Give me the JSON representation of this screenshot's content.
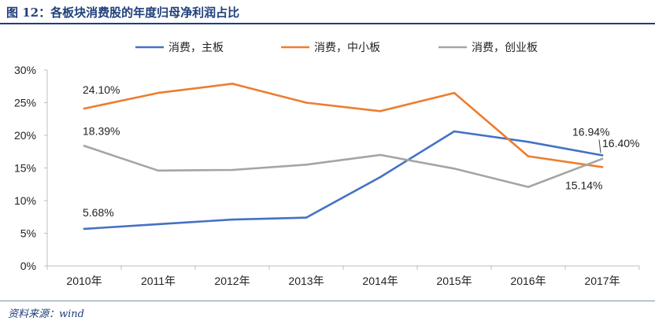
{
  "figure": {
    "title": "图 12：各板块消费股的年度归母净利润占比",
    "source": "资料来源：wind"
  },
  "chart_data": {
    "type": "line",
    "categories": [
      "2010年",
      "2011年",
      "2012年",
      "2013年",
      "2014年",
      "2015年",
      "2016年",
      "2017年"
    ],
    "series": [
      {
        "name": "消费，主板",
        "color": "#4472c4",
        "values": [
          5.68,
          6.4,
          7.1,
          7.4,
          13.6,
          20.6,
          19.0,
          16.94
        ]
      },
      {
        "name": "消费，中小板",
        "color": "#ed7d31",
        "values": [
          24.1,
          26.5,
          27.9,
          25.0,
          23.7,
          26.5,
          16.8,
          15.14
        ]
      },
      {
        "name": "消费，创业板",
        "color": "#a5a5a5",
        "values": [
          18.39,
          14.6,
          14.7,
          15.5,
          17.0,
          14.9,
          12.1,
          16.4
        ]
      }
    ],
    "ylim": [
      0,
      30
    ],
    "yticks": [
      0,
      5,
      10,
      15,
      20,
      25,
      30
    ],
    "ytick_labels": [
      "0%",
      "5%",
      "10%",
      "15%",
      "20%",
      "25%",
      "30%"
    ],
    "grid": false,
    "legend_position": "top",
    "data_labels": [
      {
        "series": 0,
        "index": 0,
        "text": "5.68%"
      },
      {
        "series": 0,
        "index": 7,
        "text": "16.94%"
      },
      {
        "series": 1,
        "index": 0,
        "text": "24.10%"
      },
      {
        "series": 1,
        "index": 7,
        "text": "15.14%"
      },
      {
        "series": 2,
        "index": 0,
        "text": "18.39%"
      },
      {
        "series": 2,
        "index": 7,
        "text": "16.40%"
      }
    ]
  }
}
